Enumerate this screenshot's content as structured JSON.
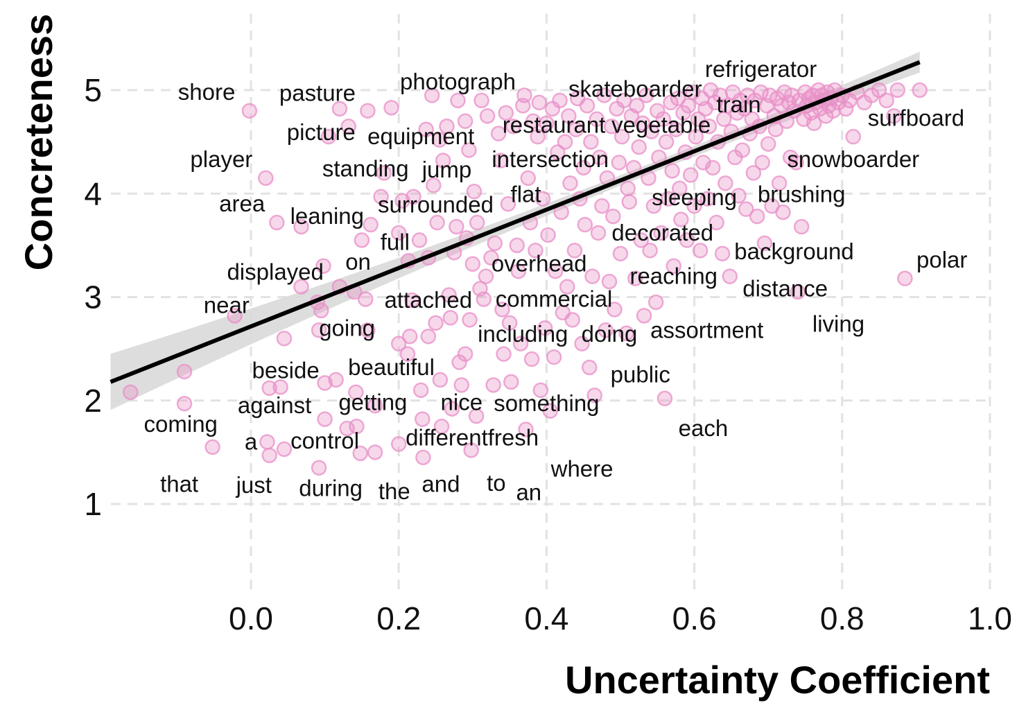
{
  "chart_data": {
    "type": "scatter",
    "title": "",
    "xlabel": "Uncertainty Coefficient",
    "ylabel": "Concreteness",
    "xlim": [
      -0.19,
      1.0
    ],
    "ylim": [
      0.2,
      5.55
    ],
    "x_ticks": [
      "0.0",
      "0.2",
      "0.4",
      "0.6",
      "0.8",
      "1.0"
    ],
    "x_tick_values": [
      0.0,
      0.2,
      0.4,
      0.6,
      0.8,
      1.0
    ],
    "y_ticks": [
      "1",
      "2",
      "3",
      "4",
      "5"
    ],
    "y_tick_values": [
      1,
      2,
      3,
      4,
      5
    ],
    "grid": true,
    "point_color": "#e88fc7",
    "fit_line_color": "#000000",
    "confidence_band_color": "#d9d9d9",
    "fit_line": {
      "x": [
        -0.19,
        0.905
      ],
      "y": [
        2.18,
        5.27
      ]
    },
    "labels": [
      {
        "text": "shore",
        "x": -0.06,
        "y": 4.98
      },
      {
        "text": "pasture",
        "x": 0.09,
        "y": 4.97
      },
      {
        "text": "photograph",
        "x": 0.28,
        "y": 5.08
      },
      {
        "text": "skateboarder",
        "x": 0.52,
        "y": 5.01
      },
      {
        "text": "refrigerator",
        "x": 0.69,
        "y": 5.2
      },
      {
        "text": "train",
        "x": 0.66,
        "y": 4.86
      },
      {
        "text": "surfboard",
        "x": 0.9,
        "y": 4.73
      },
      {
        "text": "picture",
        "x": 0.095,
        "y": 4.59
      },
      {
        "text": "equipment",
        "x": 0.23,
        "y": 4.55
      },
      {
        "text": "restaurant",
        "x": 0.41,
        "y": 4.66
      },
      {
        "text": "vegetable",
        "x": 0.555,
        "y": 4.66
      },
      {
        "text": "player",
        "x": -0.04,
        "y": 4.33
      },
      {
        "text": "standing",
        "x": 0.155,
        "y": 4.24
      },
      {
        "text": "jump",
        "x": 0.265,
        "y": 4.23
      },
      {
        "text": "intersection",
        "x": 0.405,
        "y": 4.33
      },
      {
        "text": "snowboarder",
        "x": 0.815,
        "y": 4.33
      },
      {
        "text": "flat",
        "x": 0.372,
        "y": 3.99
      },
      {
        "text": "sleeping",
        "x": 0.6,
        "y": 3.96
      },
      {
        "text": "brushing",
        "x": 0.745,
        "y": 3.99
      },
      {
        "text": "area",
        "x": -0.012,
        "y": 3.9
      },
      {
        "text": "surrounded",
        "x": 0.25,
        "y": 3.89
      },
      {
        "text": "leaning",
        "x": 0.103,
        "y": 3.78
      },
      {
        "text": "decorated",
        "x": 0.557,
        "y": 3.62
      },
      {
        "text": "full",
        "x": 0.195,
        "y": 3.53
      },
      {
        "text": "background",
        "x": 0.735,
        "y": 3.44
      },
      {
        "text": "polar",
        "x": 0.935,
        "y": 3.36
      },
      {
        "text": "on",
        "x": 0.145,
        "y": 3.34
      },
      {
        "text": "overhead",
        "x": 0.39,
        "y": 3.32
      },
      {
        "text": "displayed",
        "x": 0.033,
        "y": 3.24
      },
      {
        "text": "reaching",
        "x": 0.572,
        "y": 3.2
      },
      {
        "text": "distance",
        "x": 0.723,
        "y": 3.08
      },
      {
        "text": "near",
        "x": -0.033,
        "y": 2.92
      },
      {
        "text": "attached",
        "x": 0.24,
        "y": 2.97
      },
      {
        "text": "commercial",
        "x": 0.41,
        "y": 2.98
      },
      {
        "text": "living",
        "x": 0.795,
        "y": 2.74
      },
      {
        "text": "going",
        "x": 0.13,
        "y": 2.7
      },
      {
        "text": "including",
        "x": 0.368,
        "y": 2.64
      },
      {
        "text": "doing",
        "x": 0.485,
        "y": 2.64
      },
      {
        "text": "assortment",
        "x": 0.617,
        "y": 2.68
      },
      {
        "text": "beside",
        "x": 0.047,
        "y": 2.29
      },
      {
        "text": "beautiful",
        "x": 0.19,
        "y": 2.32
      },
      {
        "text": "public",
        "x": 0.527,
        "y": 2.25
      },
      {
        "text": "against",
        "x": 0.032,
        "y": 1.95
      },
      {
        "text": "getting",
        "x": 0.165,
        "y": 1.98
      },
      {
        "text": "nice",
        "x": 0.285,
        "y": 1.98
      },
      {
        "text": "something",
        "x": 0.4,
        "y": 1.97
      },
      {
        "text": "coming",
        "x": -0.095,
        "y": 1.77
      },
      {
        "text": "each",
        "x": 0.612,
        "y": 1.73
      },
      {
        "text": "a",
        "x": 0.0,
        "y": 1.6
      },
      {
        "text": "control",
        "x": 0.1,
        "y": 1.61
      },
      {
        "text": "different",
        "x": 0.265,
        "y": 1.64
      },
      {
        "text": "fresh",
        "x": 0.355,
        "y": 1.64
      },
      {
        "text": "where",
        "x": 0.448,
        "y": 1.34
      },
      {
        "text": "that",
        "x": -0.097,
        "y": 1.19
      },
      {
        "text": "just",
        "x": 0.004,
        "y": 1.18
      },
      {
        "text": "during",
        "x": 0.108,
        "y": 1.15
      },
      {
        "text": "the",
        "x": 0.194,
        "y": 1.12
      },
      {
        "text": "and",
        "x": 0.257,
        "y": 1.19
      },
      {
        "text": "to",
        "x": 0.332,
        "y": 1.2
      },
      {
        "text": "an",
        "x": 0.376,
        "y": 1.11
      }
    ],
    "points": [
      [
        -0.163,
        2.08
      ],
      [
        -0.09,
        2.28
      ],
      [
        -0.09,
        1.97
      ],
      [
        -0.052,
        1.55
      ],
      [
        -0.022,
        2.82
      ],
      [
        -0.002,
        4.8
      ],
      [
        0.02,
        4.15
      ],
      [
        0.035,
        3.72
      ],
      [
        0.025,
        2.12
      ],
      [
        0.04,
        2.13
      ],
      [
        0.022,
        1.6
      ],
      [
        0.025,
        1.47
      ],
      [
        0.045,
        2.6
      ],
      [
        0.045,
        1.53
      ],
      [
        0.068,
        3.68
      ],
      [
        0.068,
        3.1
      ],
      [
        0.09,
        2.95
      ],
      [
        0.092,
        2.68
      ],
      [
        0.098,
        3.3
      ],
      [
        0.095,
        2.87
      ],
      [
        0.1,
        2.17
      ],
      [
        0.1,
        1.82
      ],
      [
        0.092,
        1.35
      ],
      [
        0.105,
        4.55
      ],
      [
        0.12,
        3.1
      ],
      [
        0.115,
        2.2
      ],
      [
        0.12,
        4.82
      ],
      [
        0.13,
        1.73
      ],
      [
        0.132,
        4.65
      ],
      [
        0.14,
        3.05
      ],
      [
        0.142,
        2.08
      ],
      [
        0.148,
        1.49
      ],
      [
        0.143,
        1.75
      ],
      [
        0.15,
        3.55
      ],
      [
        0.155,
        2.98
      ],
      [
        0.158,
        2.68
      ],
      [
        0.158,
        4.8
      ],
      [
        0.162,
        3.7
      ],
      [
        0.168,
        1.95
      ],
      [
        0.168,
        1.5
      ],
      [
        0.176,
        3.97
      ],
      [
        0.18,
        4.2
      ],
      [
        0.19,
        4.83
      ],
      [
        0.2,
        2.55
      ],
      [
        0.2,
        3.62
      ],
      [
        0.2,
        1.58
      ],
      [
        0.205,
        3.93
      ],
      [
        0.213,
        3.35
      ],
      [
        0.215,
        2.62
      ],
      [
        0.212,
        2.45
      ],
      [
        0.218,
        2.97
      ],
      [
        0.22,
        3.97
      ],
      [
        0.228,
        3.55
      ],
      [
        0.23,
        2.1
      ],
      [
        0.232,
        1.82
      ],
      [
        0.233,
        1.45
      ],
      [
        0.237,
        4.62
      ],
      [
        0.24,
        2.62
      ],
      [
        0.24,
        3.38
      ],
      [
        0.245,
        4.95
      ],
      [
        0.247,
        4.08
      ],
      [
        0.25,
        2.75
      ],
      [
        0.252,
        3.72
      ],
      [
        0.255,
        4.52
      ],
      [
        0.256,
        2.2
      ],
      [
        0.258,
        1.75
      ],
      [
        0.26,
        4.32
      ],
      [
        0.265,
        4.65
      ],
      [
        0.268,
        3.02
      ],
      [
        0.27,
        2.8
      ],
      [
        0.272,
        1.92
      ],
      [
        0.275,
        3.43
      ],
      [
        0.278,
        3.68
      ],
      [
        0.28,
        4.9
      ],
      [
        0.282,
        2.37
      ],
      [
        0.285,
        2.15
      ],
      [
        0.29,
        2.45
      ],
      [
        0.29,
        4.7
      ],
      [
        0.292,
        3.57
      ],
      [
        0.295,
        4.42
      ],
      [
        0.296,
        2.78
      ],
      [
        0.298,
        1.52
      ],
      [
        0.3,
        3.32
      ],
      [
        0.302,
        4.02
      ],
      [
        0.305,
        1.85
      ],
      [
        0.306,
        3.72
      ],
      [
        0.31,
        3.08
      ],
      [
        0.312,
        4.9
      ],
      [
        0.315,
        2.98
      ],
      [
        0.318,
        3.2
      ],
      [
        0.32,
        4.75
      ],
      [
        0.325,
        3.38
      ],
      [
        0.328,
        2.15
      ],
      [
        0.33,
        3.52
      ],
      [
        0.335,
        4.58
      ],
      [
        0.338,
        4.32
      ],
      [
        0.34,
        2.88
      ],
      [
        0.342,
        2.45
      ],
      [
        0.345,
        4.78
      ],
      [
        0.348,
        3.9
      ],
      [
        0.35,
        2.75
      ],
      [
        0.352,
        2.18
      ],
      [
        0.355,
        4.65
      ],
      [
        0.36,
        3.5
      ],
      [
        0.362,
        3.25
      ],
      [
        0.365,
        2.55
      ],
      [
        0.368,
        4.85
      ],
      [
        0.37,
        4.95
      ],
      [
        0.372,
        1.72
      ],
      [
        0.375,
        4.15
      ],
      [
        0.378,
        3.72
      ],
      [
        0.38,
        2.4
      ],
      [
        0.382,
        4.7
      ],
      [
        0.385,
        3.45
      ],
      [
        0.388,
        4.55
      ],
      [
        0.39,
        4.88
      ],
      [
        0.392,
        2.1
      ],
      [
        0.395,
        3.95
      ],
      [
        0.398,
        2.7
      ],
      [
        0.4,
        4.68
      ],
      [
        0.402,
        3.6
      ],
      [
        0.405,
        1.9
      ],
      [
        0.408,
        4.82
      ],
      [
        0.41,
        2.42
      ],
      [
        0.412,
        3.25
      ],
      [
        0.415,
        4.4
      ],
      [
        0.418,
        4.9
      ],
      [
        0.42,
        3.82
      ],
      [
        0.422,
        2.85
      ],
      [
        0.425,
        4.5
      ],
      [
        0.428,
        3.1
      ],
      [
        0.43,
        4.75
      ],
      [
        0.432,
        4.1
      ],
      [
        0.435,
        2.78
      ],
      [
        0.438,
        3.45
      ],
      [
        0.44,
        4.62
      ],
      [
        0.442,
        4.92
      ],
      [
        0.445,
        3.95
      ],
      [
        0.448,
        2.55
      ],
      [
        0.45,
        4.25
      ],
      [
        0.452,
        3.7
      ],
      [
        0.455,
        4.85
      ],
      [
        0.458,
        2.32
      ],
      [
        0.46,
        4.5
      ],
      [
        0.462,
        3.2
      ],
      [
        0.465,
        2.05
      ],
      [
        0.468,
        4.72
      ],
      [
        0.47,
        3.62
      ],
      [
        0.472,
        4.35
      ],
      [
        0.475,
        3.88
      ],
      [
        0.478,
        4.95
      ],
      [
        0.48,
        2.68
      ],
      [
        0.482,
        4.15
      ],
      [
        0.485,
        3.15
      ],
      [
        0.488,
        4.65
      ],
      [
        0.49,
        3.78
      ],
      [
        0.492,
        2.88
      ],
      [
        0.495,
        4.82
      ],
      [
        0.498,
        4.3
      ],
      [
        0.5,
        3.42
      ],
      [
        0.502,
        4.55
      ],
      [
        0.505,
        4.9
      ],
      [
        0.508,
        2.65
      ],
      [
        0.51,
        4.05
      ],
      [
        0.512,
        3.92
      ],
      [
        0.515,
        4.75
      ],
      [
        0.518,
        4.25
      ],
      [
        0.52,
        3.18
      ],
      [
        0.522,
        4.85
      ],
      [
        0.525,
        4.45
      ],
      [
        0.528,
        3.55
      ],
      [
        0.53,
        4.68
      ],
      [
        0.532,
        2.82
      ],
      [
        0.535,
        4.95
      ],
      [
        0.538,
        4.15
      ],
      [
        0.54,
        3.45
      ],
      [
        0.542,
        4.6
      ],
      [
        0.545,
        3.88
      ],
      [
        0.548,
        2.95
      ],
      [
        0.55,
        4.8
      ],
      [
        0.552,
        4.35
      ],
      [
        0.555,
        3.62
      ],
      [
        0.558,
        4.72
      ],
      [
        0.56,
        2.02
      ],
      [
        0.562,
        4.5
      ],
      [
        0.565,
        3.95
      ],
      [
        0.568,
        4.88
      ],
      [
        0.57,
        4.22
      ],
      [
        0.572,
        3.3
      ],
      [
        0.575,
        4.62
      ],
      [
        0.578,
        4.92
      ],
      [
        0.58,
        4.05
      ],
      [
        0.582,
        3.75
      ],
      [
        0.585,
        4.78
      ],
      [
        0.588,
        4.4
      ],
      [
        0.59,
        3.55
      ],
      [
        0.592,
        4.85
      ],
      [
        0.595,
        4.18
      ],
      [
        0.598,
        4.98
      ],
      [
        0.6,
        3.88
      ],
      [
        0.602,
        4.55
      ],
      [
        0.605,
        4.72
      ],
      [
        0.608,
        3.45
      ],
      [
        0.61,
        4.92
      ],
      [
        0.612,
        4.3
      ],
      [
        0.615,
        4.82
      ],
      [
        0.618,
        3.95
      ],
      [
        0.62,
        4.65
      ],
      [
        0.622,
        5.0
      ],
      [
        0.625,
        4.25
      ],
      [
        0.628,
        4.88
      ],
      [
        0.63,
        3.72
      ],
      [
        0.632,
        4.5
      ],
      [
        0.635,
        4.95
      ],
      [
        0.638,
        3.42
      ],
      [
        0.64,
        4.72
      ],
      [
        0.642,
        4.1
      ],
      [
        0.645,
        4.85
      ],
      [
        0.648,
        3.2
      ],
      [
        0.65,
        4.6
      ],
      [
        0.652,
        4.98
      ],
      [
        0.655,
        4.35
      ],
      [
        0.658,
        4.78
      ],
      [
        0.66,
        3.98
      ],
      [
        0.662,
        4.9
      ],
      [
        0.665,
        4.42
      ],
      [
        0.668,
        4.82
      ],
      [
        0.67,
        3.85
      ],
      [
        0.672,
        4.95
      ],
      [
        0.675,
        4.58
      ],
      [
        0.678,
        4.72
      ],
      [
        0.68,
        4.2
      ],
      [
        0.682,
        4.9
      ],
      [
        0.685,
        3.78
      ],
      [
        0.688,
        4.65
      ],
      [
        0.69,
        4.98
      ],
      [
        0.692,
        4.3
      ],
      [
        0.695,
        3.52
      ],
      [
        0.698,
        4.85
      ],
      [
        0.7,
        4.48
      ],
      [
        0.702,
        4.95
      ],
      [
        0.705,
        3.88
      ],
      [
        0.708,
        4.75
      ],
      [
        0.71,
        4.62
      ],
      [
        0.712,
        4.92
      ],
      [
        0.715,
        4.1
      ],
      [
        0.718,
        4.85
      ],
      [
        0.72,
        3.82
      ],
      [
        0.722,
        4.98
      ],
      [
        0.725,
        4.7
      ],
      [
        0.728,
        4.88
      ],
      [
        0.73,
        4.35
      ],
      [
        0.732,
        4.95
      ],
      [
        0.735,
        4.8
      ],
      [
        0.738,
        4.3
      ],
      [
        0.74,
        3.05
      ],
      [
        0.742,
        4.9
      ],
      [
        0.745,
        3.68
      ],
      [
        0.748,
        4.72
      ],
      [
        0.75,
        4.98
      ],
      [
        0.752,
        4.85
      ],
      [
        0.755,
        4.92
      ],
      [
        0.758,
        4.78
      ],
      [
        0.76,
        4.95
      ],
      [
        0.762,
        4.68
      ],
      [
        0.765,
        4.88
      ],
      [
        0.768,
        5.0
      ],
      [
        0.77,
        4.82
      ],
      [
        0.772,
        4.95
      ],
      [
        0.775,
        4.9
      ],
      [
        0.778,
        4.75
      ],
      [
        0.78,
        4.98
      ],
      [
        0.782,
        4.85
      ],
      [
        0.785,
        4.92
      ],
      [
        0.788,
        4.8
      ],
      [
        0.79,
        5.0
      ],
      [
        0.795,
        4.88
      ],
      [
        0.8,
        4.95
      ],
      [
        0.805,
        4.82
      ],
      [
        0.81,
        4.9
      ],
      [
        0.815,
        4.55
      ],
      [
        0.82,
        4.98
      ],
      [
        0.83,
        4.88
      ],
      [
        0.84,
        4.95
      ],
      [
        0.85,
        5.0
      ],
      [
        0.86,
        4.9
      ],
      [
        0.87,
        4.75
      ],
      [
        0.875,
        5.0
      ],
      [
        0.885,
        3.18
      ],
      [
        0.905,
        5.0
      ]
    ]
  }
}
